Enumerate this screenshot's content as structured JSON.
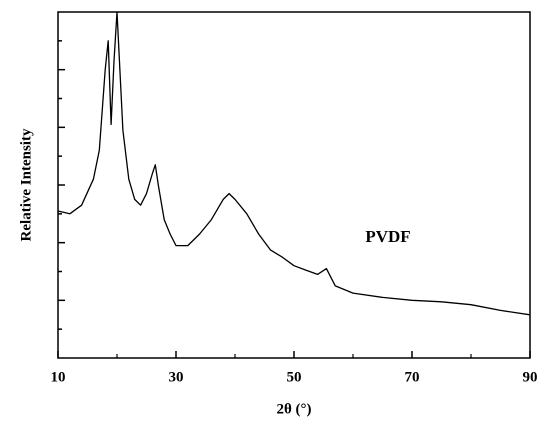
{
  "chart_data": {
    "type": "line",
    "x_label": "2θ (°)",
    "y_label": "Relative Intensity",
    "annotation": "PVDF",
    "x": [
      10,
      12,
      14,
      16,
      17,
      18,
      18.5,
      19,
      19.5,
      20,
      21,
      22,
      23,
      24,
      25,
      26,
      26.5,
      27,
      28,
      29,
      30,
      32,
      34,
      36,
      38,
      39,
      40,
      42,
      44,
      46,
      48,
      50,
      52,
      54,
      55.5,
      57,
      60,
      65,
      70,
      75,
      80,
      85,
      90
    ],
    "series": [
      {
        "name": "PVDF",
        "color": "#000000",
        "values": [
          5.1,
          5.0,
          5.3,
          6.2,
          7.2,
          10.0,
          11.0,
          8.1,
          10.3,
          12.0,
          7.9,
          6.2,
          5.5,
          5.3,
          5.7,
          6.4,
          6.7,
          6.0,
          4.8,
          4.3,
          3.9,
          3.9,
          4.3,
          4.8,
          5.5,
          5.7,
          5.5,
          5.0,
          4.3,
          3.75,
          3.5,
          3.2,
          3.05,
          2.9,
          3.1,
          2.5,
          2.25,
          2.1,
          2.0,
          1.95,
          1.85,
          1.65,
          1.5
        ]
      }
    ],
    "xlim": [
      10,
      90
    ],
    "xticks": [
      10,
      30,
      50,
      70,
      90
    ],
    "ylim": [
      0,
      12
    ],
    "yticks": [
      1,
      2,
      3,
      4,
      5,
      6,
      7,
      8,
      9,
      10,
      11
    ]
  }
}
